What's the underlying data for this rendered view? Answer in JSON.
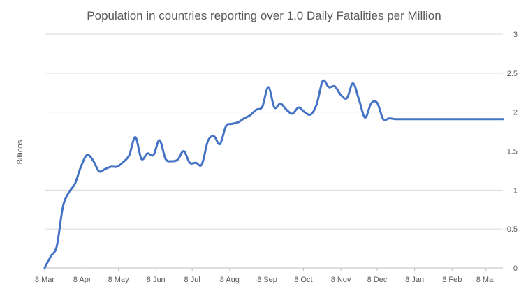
{
  "chart_data": {
    "type": "line",
    "title": "Population in countries reporting over 1.0 Daily Fatalities per Million",
    "xlabel": "",
    "ylabel": "Billions",
    "ylim": [
      0,
      3
    ],
    "yticks": [
      "0",
      "0.5",
      "1",
      "1.5",
      "2",
      "2.5",
      "3"
    ],
    "xticks": [
      "8 Mar",
      "8 Apr",
      "8 May",
      "8 Jun",
      "8 Jul",
      "8 Aug",
      "8 Sep",
      "8 Oct",
      "8 Nov",
      "8 Dec",
      "8 Jan",
      "8 Feb",
      "8 Mar"
    ],
    "grid": true,
    "y_axis_side": "right",
    "line_color": "#4472c4",
    "series": [
      {
        "x": [
          "2020-03-08",
          "2020-03-13",
          "2020-03-18",
          "2020-03-23",
          "2020-03-28",
          "2020-04-02",
          "2020-04-07",
          "2020-04-12",
          "2020-04-17",
          "2020-04-22",
          "2020-04-27",
          "2020-05-02",
          "2020-05-07",
          "2020-05-12",
          "2020-05-17",
          "2020-05-22",
          "2020-05-27",
          "2020-06-01",
          "2020-06-06",
          "2020-06-11",
          "2020-06-16",
          "2020-06-21",
          "2020-06-26",
          "2020-07-01",
          "2020-07-06",
          "2020-07-11",
          "2020-07-16",
          "2020-07-21",
          "2020-07-26",
          "2020-07-31",
          "2020-08-05",
          "2020-08-10",
          "2020-08-15",
          "2020-08-20",
          "2020-08-25",
          "2020-08-30",
          "2020-09-04",
          "2020-09-09",
          "2020-09-14",
          "2020-09-19",
          "2020-09-24",
          "2020-09-29",
          "2020-10-04",
          "2020-10-09",
          "2020-10-14",
          "2020-10-19",
          "2020-10-24",
          "2020-10-29",
          "2020-11-03",
          "2020-11-08",
          "2020-11-13",
          "2020-11-18",
          "2020-11-23",
          "2020-11-28",
          "2020-12-03",
          "2020-12-08",
          "2020-12-13",
          "2020-12-18",
          "2020-12-23",
          "2020-12-28",
          "2021-01-02",
          "2021-01-07",
          "2021-01-12",
          "2021-01-17",
          "2021-01-22",
          "2021-01-27",
          "2021-02-01",
          "2021-02-06",
          "2021-02-11",
          "2021-02-16",
          "2021-02-21",
          "2021-02-26",
          "2021-03-03",
          "2021-03-08",
          "2021-03-13",
          "2021-03-18",
          "2021-03-22"
        ],
        "values": [
          0.0,
          0.15,
          0.28,
          0.78,
          0.97,
          1.08,
          1.3,
          1.45,
          1.38,
          1.24,
          1.27,
          1.3,
          1.3,
          1.36,
          1.45,
          1.68,
          1.4,
          1.47,
          1.45,
          1.64,
          1.4,
          1.37,
          1.39,
          1.5,
          1.35,
          1.35,
          1.33,
          1.63,
          1.69,
          1.59,
          1.82,
          1.85,
          1.87,
          1.92,
          1.96,
          2.03,
          2.07,
          2.32,
          2.06,
          2.11,
          2.03,
          1.98,
          2.06,
          2.0,
          1.97,
          2.1,
          2.4,
          2.32,
          2.33,
          2.22,
          2.18,
          2.37,
          2.16,
          1.93,
          2.11,
          2.12,
          1.91,
          1.92,
          1.91,
          1.91,
          1.91,
          1.91,
          1.91,
          1.91,
          1.91,
          1.91,
          1.91,
          1.91,
          1.91,
          1.91,
          1.91,
          1.91,
          1.91,
          1.91,
          1.91,
          1.91,
          1.91
        ]
      }
    ]
  }
}
